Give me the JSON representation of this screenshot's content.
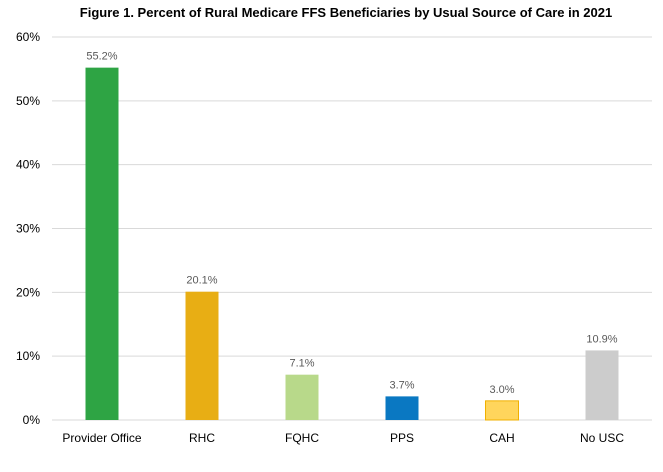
{
  "chart_data": {
    "type": "bar",
    "title": "Figure 1. Percent of Rural Medicare FFS Beneficiaries by Usual Source of Care in 2021",
    "xlabel": "",
    "ylabel": "",
    "ylim": [
      0,
      60
    ],
    "yticks": [
      "0%",
      "10%",
      "20%",
      "30%",
      "40%",
      "50%",
      "60%"
    ],
    "grid": true,
    "categories": [
      "Provider Office",
      "RHC",
      "FQHC",
      "PPS",
      "CAH",
      "No USC"
    ],
    "values": [
      55.2,
      20.1,
      7.1,
      3.7,
      3.0,
      10.9
    ],
    "data_labels": [
      "55.2%",
      "20.1%",
      "7.1%",
      "3.7%",
      "3.0%",
      "10.9%"
    ],
    "colors": [
      "#2ea444",
      "#e8ae14",
      "#b8d98a",
      "#0a78c2",
      "#ffd55c",
      "#cccccc"
    ]
  }
}
